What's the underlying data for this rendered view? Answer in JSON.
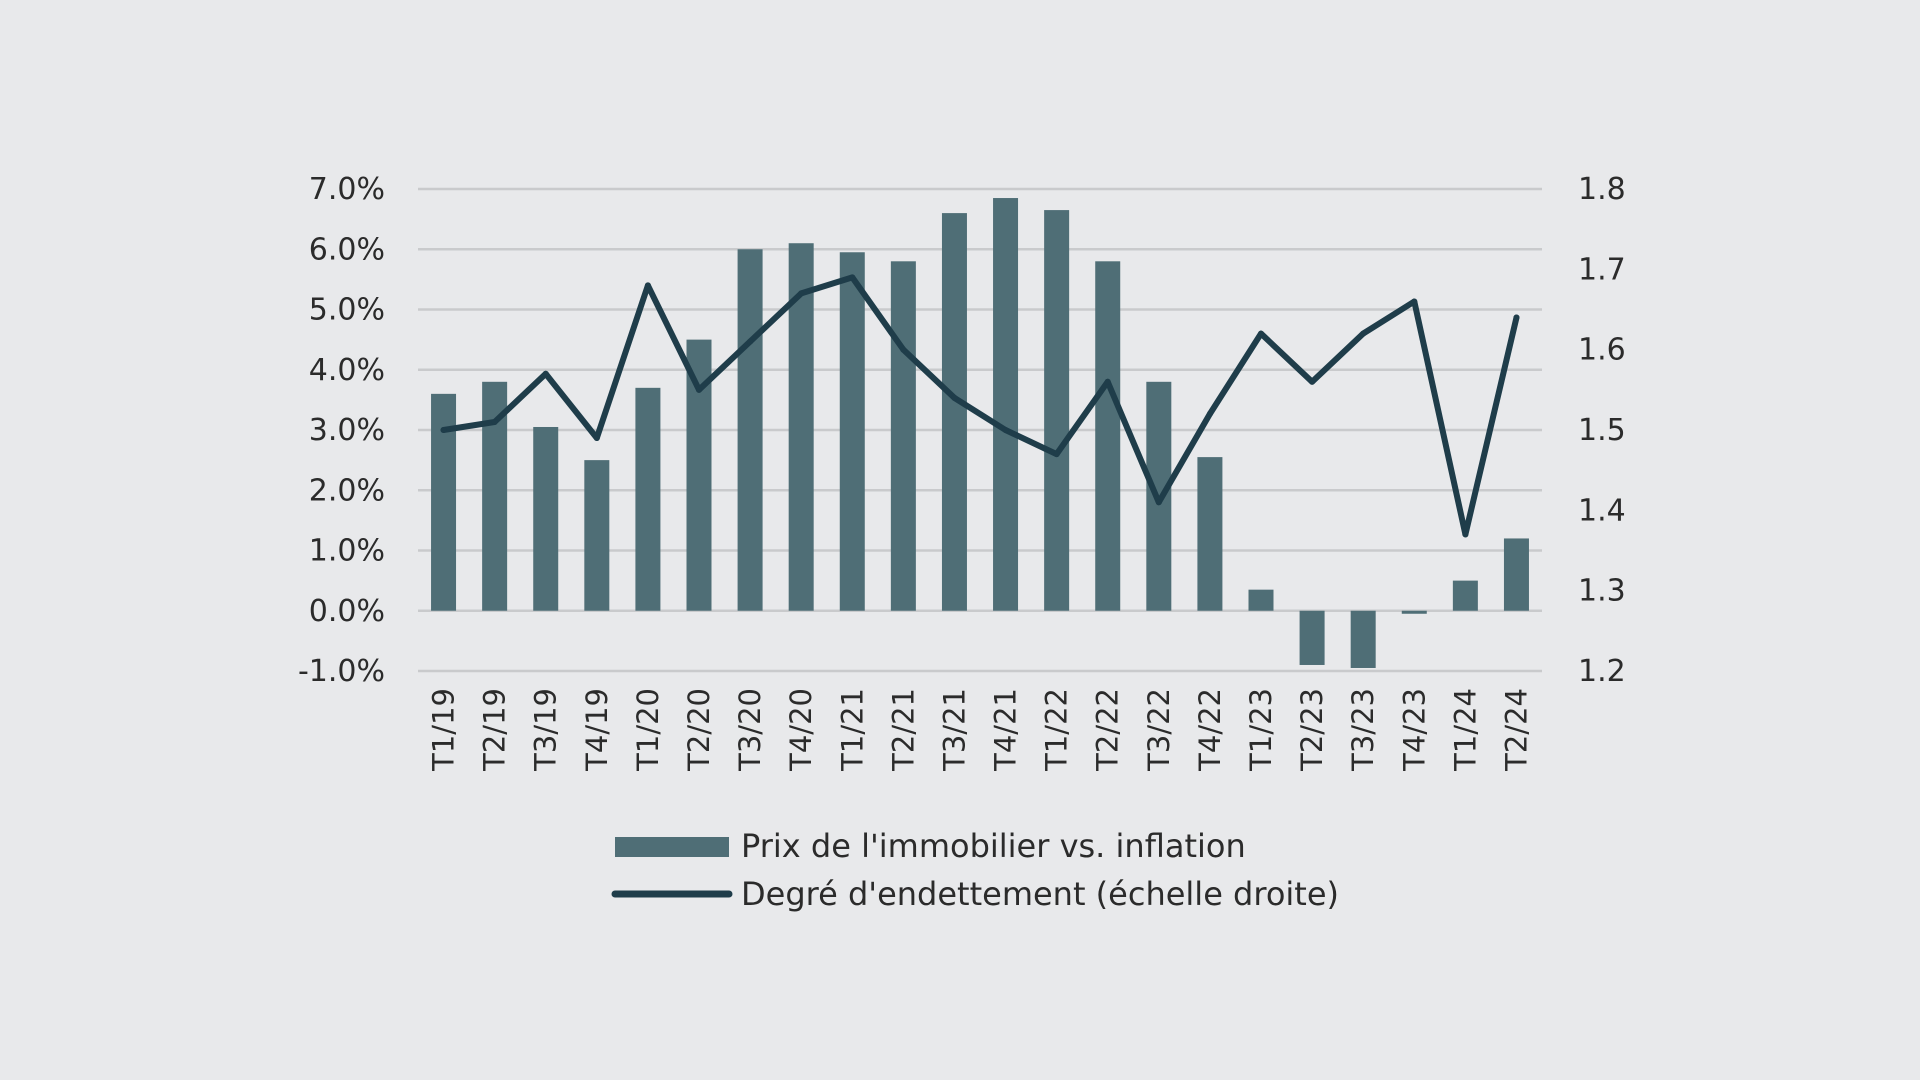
{
  "chart_data": {
    "type": "bar+line",
    "categories": [
      "T1/19",
      "T2/19",
      "T3/19",
      "T4/19",
      "T1/20",
      "T2/20",
      "T3/20",
      "T4/20",
      "T1/21",
      "T2/21",
      "T3/21",
      "T4/21",
      "T1/22",
      "T2/22",
      "T3/22",
      "T4/22",
      "T1/23",
      "T2/23",
      "T3/23",
      "T4/23",
      "T1/24",
      "T2/24"
    ],
    "series": [
      {
        "name": "Prix de l'immobilier vs. inflation",
        "type": "bar",
        "axis": "left",
        "color": "#4f6e76",
        "values": [
          3.6,
          3.8,
          3.05,
          2.5,
          3.7,
          4.5,
          6.0,
          6.1,
          5.95,
          5.8,
          6.6,
          6.85,
          6.65,
          5.8,
          3.8,
          2.55,
          0.35,
          -0.9,
          -0.95,
          -0.05,
          0.5,
          1.2
        ]
      },
      {
        "name": "Degré d'endettement (échelle droite)",
        "type": "line",
        "axis": "right",
        "color": "#1f3d4a",
        "values": [
          1.5,
          1.51,
          1.57,
          1.49,
          1.68,
          1.55,
          1.61,
          1.67,
          1.69,
          1.6,
          1.54,
          1.5,
          1.47,
          1.56,
          1.41,
          1.52,
          1.62,
          1.56,
          1.62,
          1.66,
          1.37,
          1.64
        ]
      }
    ],
    "y_left": {
      "min": -1.0,
      "max": 7.0,
      "ticks": [
        -1.0,
        0.0,
        1.0,
        2.0,
        3.0,
        4.0,
        5.0,
        6.0,
        7.0
      ],
      "tick_labels": [
        "-1.0%",
        "0.0%",
        "1.0%",
        "2.0%",
        "3.0%",
        "4.0%",
        "5.0%",
        "6.0%",
        "7.0%"
      ]
    },
    "y_right": {
      "min": 1.2,
      "max": 1.8,
      "ticks": [
        1.2,
        1.3,
        1.4,
        1.5,
        1.6,
        1.7,
        1.8
      ],
      "tick_labels": [
        "1.2",
        "1.3",
        "1.4",
        "1.5",
        "1.6",
        "1.7",
        "1.8"
      ]
    },
    "grid": true,
    "grid_color": "#c9cacc",
    "legend_position": "bottom"
  }
}
